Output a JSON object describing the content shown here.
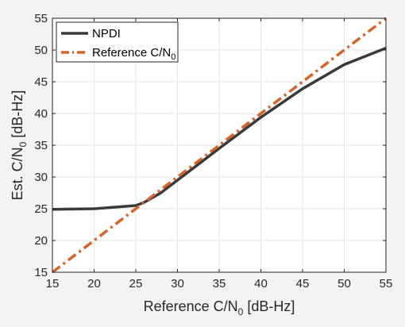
{
  "chart_data": {
    "type": "line",
    "title": "",
    "xlabel": "Reference C/N",
    "xlabel_sub": "0",
    "xlabel_suffix": " [dB-Hz]",
    "ylabel": "Est. C/N",
    "ylabel_sub": "0",
    "ylabel_suffix": " [dB-Hz]",
    "xlim": [
      15,
      55
    ],
    "ylim": [
      15,
      55
    ],
    "xticks": [
      15,
      20,
      25,
      30,
      35,
      40,
      45,
      50,
      55
    ],
    "yticks": [
      15,
      20,
      25,
      30,
      35,
      40,
      45,
      50,
      55
    ],
    "grid": true,
    "legend_position": "top-left",
    "series": [
      {
        "name": "NPDI",
        "name_sub": "",
        "color": "#3a3a3a",
        "style": "solid",
        "x": [
          15,
          20,
          25,
          26,
          28,
          30,
          35,
          40,
          45,
          50,
          55
        ],
        "y": [
          24.9,
          25.0,
          25.5,
          26.0,
          27.5,
          29.5,
          34.5,
          39.4,
          43.9,
          47.7,
          50.3
        ]
      },
      {
        "name": "Reference C/N",
        "name_sub": "0",
        "color": "#d9622b",
        "style": "dashdot",
        "x": [
          15,
          55
        ],
        "y": [
          15,
          55
        ]
      }
    ]
  }
}
